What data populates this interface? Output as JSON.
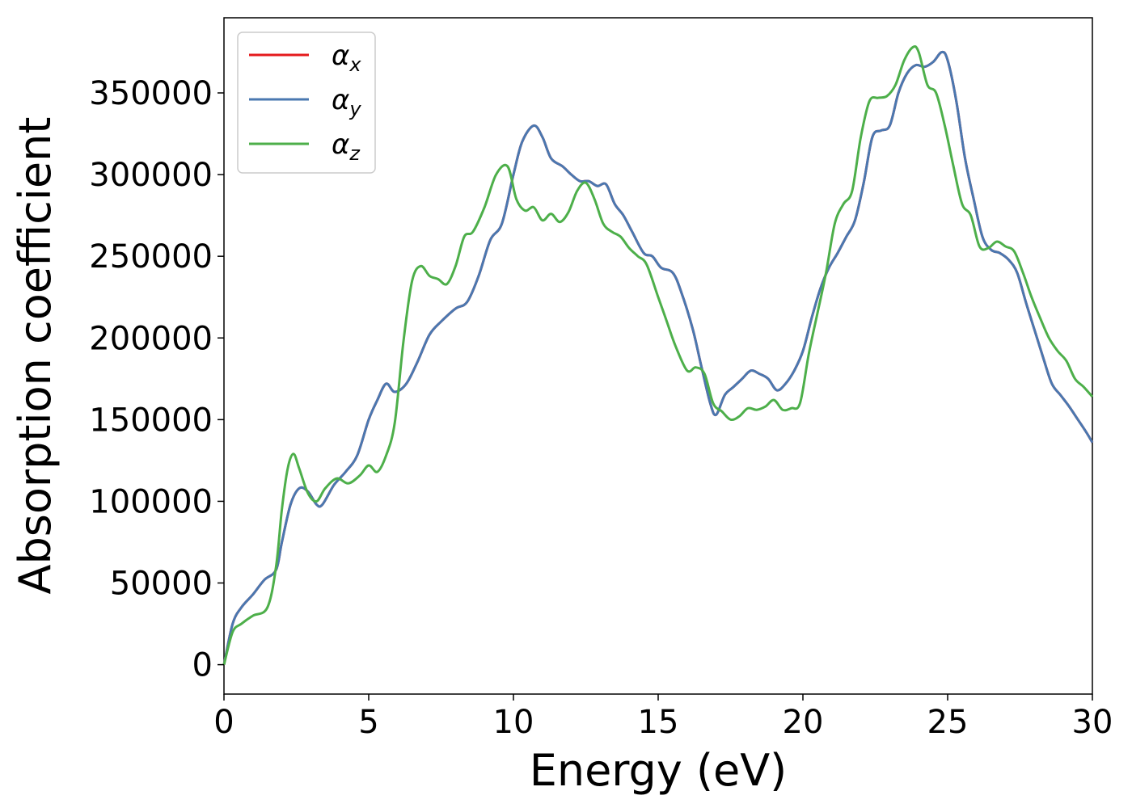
{
  "chart_data": {
    "type": "line",
    "xlabel": "Energy (eV)",
    "ylabel": "Absorption coefficient",
    "xlim": [
      0,
      30
    ],
    "ylim": [
      -18000,
      396000
    ],
    "xticks": [
      0,
      5,
      10,
      15,
      20,
      25,
      30
    ],
    "yticks": [
      0,
      50000,
      100000,
      150000,
      200000,
      250000,
      300000,
      350000
    ],
    "grid": false,
    "legend_position": "top-left",
    "series": [
      {
        "name": "x",
        "color": "#e41a1c",
        "x": [
          0,
          0.3,
          0.6,
          1.0,
          1.4,
          1.8,
          2.0,
          2.3,
          2.6,
          2.9,
          3.2,
          3.4,
          3.8,
          4.2,
          4.6,
          5.0,
          5.3,
          5.6,
          5.9,
          6.3,
          6.7,
          7.1,
          7.5,
          8.0,
          8.4,
          8.8,
          9.2,
          9.6,
          10.0,
          10.3,
          10.7,
          11.0,
          11.3,
          11.7,
          12.0,
          12.3,
          12.6,
          12.9,
          13.2,
          13.5,
          13.8,
          14.1,
          14.5,
          14.8,
          15.1,
          15.5,
          15.8,
          16.2,
          16.5,
          16.8,
          17.0,
          17.3,
          17.6,
          17.9,
          18.2,
          18.5,
          18.8,
          19.1,
          19.4,
          19.7,
          20.0,
          20.3,
          20.6,
          20.9,
          21.2,
          21.5,
          21.8,
          22.1,
          22.4,
          22.7,
          23.0,
          23.3,
          23.6,
          23.9,
          24.2,
          24.5,
          24.8,
          25.0,
          25.3,
          25.6,
          25.9,
          26.2,
          26.5,
          26.8,
          27.1,
          27.4,
          27.7,
          28.0,
          28.3,
          28.6,
          28.9,
          29.2,
          29.5,
          29.8,
          30.0
        ],
        "values": [
          0,
          25000,
          35000,
          43000,
          52000,
          58000,
          75000,
          98000,
          108000,
          106000,
          98000,
          98000,
          110000,
          118000,
          128000,
          150000,
          162000,
          172000,
          167000,
          172000,
          186000,
          202000,
          210000,
          218000,
          222000,
          238000,
          260000,
          270000,
          300000,
          320000,
          330000,
          323000,
          310000,
          305000,
          300000,
          296000,
          296000,
          293000,
          294000,
          282000,
          275000,
          265000,
          252000,
          250000,
          243000,
          240000,
          228000,
          205000,
          182000,
          160000,
          153000,
          165000,
          170000,
          175000,
          180000,
          178000,
          175000,
          168000,
          172000,
          180000,
          192000,
          212000,
          230000,
          243000,
          252000,
          262000,
          272000,
          295000,
          323000,
          327000,
          330000,
          350000,
          362000,
          367000,
          366000,
          369000,
          375000,
          370000,
          345000,
          310000,
          285000,
          262000,
          254000,
          252000,
          248000,
          240000,
          222000,
          205000,
          188000,
          172000,
          165000,
          158000,
          150000,
          142000,
          136000
        ]
      },
      {
        "name": "y",
        "color": "#4a78b0",
        "x": [
          0,
          0.3,
          0.6,
          1.0,
          1.4,
          1.8,
          2.0,
          2.3,
          2.6,
          2.9,
          3.2,
          3.4,
          3.8,
          4.2,
          4.6,
          5.0,
          5.3,
          5.6,
          5.9,
          6.3,
          6.7,
          7.1,
          7.5,
          8.0,
          8.4,
          8.8,
          9.2,
          9.6,
          10.0,
          10.3,
          10.7,
          11.0,
          11.3,
          11.7,
          12.0,
          12.3,
          12.6,
          12.9,
          13.2,
          13.5,
          13.8,
          14.1,
          14.5,
          14.8,
          15.1,
          15.5,
          15.8,
          16.2,
          16.5,
          16.8,
          17.0,
          17.3,
          17.6,
          17.9,
          18.2,
          18.5,
          18.8,
          19.1,
          19.4,
          19.7,
          20.0,
          20.3,
          20.6,
          20.9,
          21.2,
          21.5,
          21.8,
          22.1,
          22.4,
          22.7,
          23.0,
          23.3,
          23.6,
          23.9,
          24.2,
          24.5,
          24.8,
          25.0,
          25.3,
          25.6,
          25.9,
          26.2,
          26.5,
          26.8,
          27.1,
          27.4,
          27.7,
          28.0,
          28.3,
          28.6,
          28.9,
          29.2,
          29.5,
          29.8,
          30.0
        ],
        "values": [
          0,
          25000,
          35000,
          43000,
          52000,
          58000,
          75000,
          98000,
          108000,
          106000,
          98000,
          98000,
          110000,
          118000,
          128000,
          150000,
          162000,
          172000,
          167000,
          172000,
          186000,
          202000,
          210000,
          218000,
          222000,
          238000,
          260000,
          270000,
          300000,
          320000,
          330000,
          323000,
          310000,
          305000,
          300000,
          296000,
          296000,
          293000,
          294000,
          282000,
          275000,
          265000,
          252000,
          250000,
          243000,
          240000,
          228000,
          205000,
          182000,
          160000,
          153000,
          165000,
          170000,
          175000,
          180000,
          178000,
          175000,
          168000,
          172000,
          180000,
          192000,
          212000,
          230000,
          243000,
          252000,
          262000,
          272000,
          295000,
          323000,
          327000,
          330000,
          350000,
          362000,
          367000,
          366000,
          369000,
          375000,
          370000,
          345000,
          310000,
          285000,
          262000,
          254000,
          252000,
          248000,
          240000,
          222000,
          205000,
          188000,
          172000,
          165000,
          158000,
          150000,
          142000,
          136000
        ]
      },
      {
        "name": "z",
        "color": "#4daf4a",
        "x": [
          0,
          0.3,
          0.6,
          1.0,
          1.5,
          1.8,
          2.0,
          2.2,
          2.4,
          2.6,
          2.9,
          3.2,
          3.5,
          3.9,
          4.3,
          4.7,
          5.0,
          5.3,
          5.6,
          5.9,
          6.2,
          6.5,
          6.8,
          7.1,
          7.4,
          7.7,
          8.0,
          8.3,
          8.6,
          9.0,
          9.4,
          9.8,
          10.1,
          10.4,
          10.7,
          11.0,
          11.3,
          11.6,
          11.9,
          12.2,
          12.5,
          12.8,
          13.1,
          13.4,
          13.7,
          14.0,
          14.3,
          14.6,
          15.0,
          15.3,
          15.6,
          16.0,
          16.3,
          16.6,
          16.9,
          17.2,
          17.5,
          17.8,
          18.1,
          18.4,
          18.7,
          19.0,
          19.3,
          19.6,
          19.9,
          20.2,
          20.5,
          20.8,
          21.1,
          21.4,
          21.7,
          22.0,
          22.3,
          22.6,
          22.9,
          23.2,
          23.5,
          23.8,
          24.0,
          24.3,
          24.6,
          24.9,
          25.2,
          25.5,
          25.8,
          26.1,
          26.4,
          26.7,
          27.0,
          27.3,
          27.6,
          27.9,
          28.2,
          28.5,
          28.8,
          29.1,
          29.4,
          29.7,
          30.0
        ],
        "values": [
          0,
          20000,
          25000,
          30000,
          35000,
          60000,
          95000,
          120000,
          129000,
          120000,
          105000,
          100000,
          108000,
          114000,
          111000,
          116000,
          122000,
          118000,
          128000,
          148000,
          198000,
          235000,
          244000,
          238000,
          236000,
          233000,
          244000,
          262000,
          265000,
          280000,
          300000,
          305000,
          285000,
          278000,
          280000,
          272000,
          276000,
          271000,
          277000,
          290000,
          295000,
          285000,
          270000,
          265000,
          262000,
          255000,
          250000,
          245000,
          225000,
          210000,
          195000,
          180000,
          182000,
          178000,
          160000,
          155000,
          150000,
          152000,
          157000,
          156000,
          158000,
          162000,
          156000,
          157000,
          160000,
          190000,
          215000,
          240000,
          270000,
          282000,
          290000,
          323000,
          345000,
          347000,
          348000,
          355000,
          370000,
          378000,
          375000,
          355000,
          350000,
          330000,
          305000,
          282000,
          275000,
          256000,
          255000,
          259000,
          256000,
          253000,
          240000,
          225000,
          212000,
          200000,
          192000,
          186000,
          175000,
          170000,
          164000
        ]
      }
    ]
  }
}
